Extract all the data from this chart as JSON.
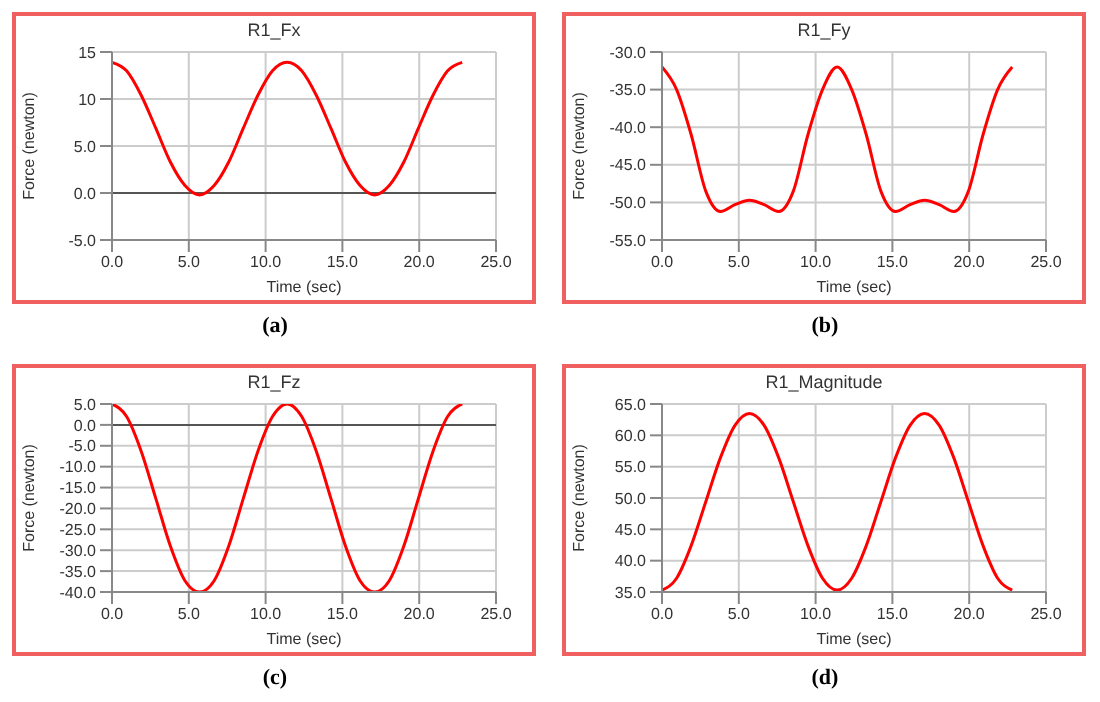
{
  "chart_data": [
    {
      "type": "line",
      "title": "R1_Fx",
      "xlabel": "Time (sec)",
      "ylabel": "Force (newton)",
      "color": "#ff0000",
      "grid": true,
      "annotations": [
        "(a)"
      ],
      "x": [
        0,
        0.95,
        1.9,
        2.85,
        3.8,
        4.75,
        5.7,
        6.65,
        7.6,
        8.55,
        9.5,
        10.45,
        11.4,
        12.35,
        13.3,
        14.25,
        15.2,
        16.15,
        17.1,
        18.05,
        19.0,
        19.95,
        20.9,
        21.85,
        22.8
      ],
      "values": [
        13.9,
        13.0,
        10.4,
        6.9,
        3.3,
        0.8,
        -0.2,
        0.8,
        3.3,
        6.9,
        10.4,
        13.0,
        13.9,
        13.0,
        10.4,
        6.9,
        3.3,
        0.8,
        -0.2,
        0.8,
        3.3,
        6.9,
        10.4,
        13.0,
        13.9
      ],
      "xlim": [
        0,
        25
      ],
      "xticks": [
        {
          "value": 0,
          "label": "0.0"
        },
        {
          "value": 5,
          "label": "5.0"
        },
        {
          "value": 10,
          "label": "10.0"
        },
        {
          "value": 15,
          "label": "15.0"
        },
        {
          "value": 20,
          "label": "20.0"
        },
        {
          "value": 25,
          "label": "25.0"
        }
      ],
      "ylim": [
        -5,
        15
      ],
      "yticks": [
        {
          "value": -5,
          "label": "-5.0"
        },
        {
          "value": 0,
          "label": "0.0"
        },
        {
          "value": 5,
          "label": "5.0"
        },
        10,
        15
      ],
      "ref_lines": [
        {
          "axis": "y",
          "value": 0,
          "color": "#555555"
        }
      ]
    },
    {
      "type": "line",
      "title": "R1_Fy",
      "xlabel": "Time (sec)",
      "ylabel": "Force (newton)",
      "color": "#ff0000",
      "grid": true,
      "annotations": [
        "(b)"
      ],
      "x": [
        0,
        0.95,
        1.9,
        2.85,
        3.8,
        4.75,
        5.7,
        6.65,
        7.6,
        8.55,
        9.5,
        10.45,
        11.4,
        12.35,
        13.3,
        14.25,
        15.2,
        16.15,
        17.1,
        18.05,
        19.0,
        19.95,
        20.9,
        21.85,
        22.8
      ],
      "values": [
        -32,
        -35,
        -41,
        -48.5,
        -51.2,
        -50.3,
        -49.7,
        -50.3,
        -51.2,
        -48.5,
        -41,
        -35,
        -32,
        -35,
        -41,
        -48.5,
        -51.2,
        -50.3,
        -49.7,
        -50.3,
        -51.2,
        -48.5,
        -41,
        -35,
        -32
      ],
      "xlim": [
        0,
        25
      ],
      "xticks": [
        {
          "value": 0,
          "label": "0.0"
        },
        {
          "value": 5,
          "label": "5.0"
        },
        {
          "value": 10,
          "label": "10.0"
        },
        {
          "value": 15,
          "label": "15.0"
        },
        {
          "value": 20,
          "label": "20.0"
        },
        {
          "value": 25,
          "label": "25.0"
        }
      ],
      "ylim": [
        -55,
        -30
      ],
      "yticks": [
        {
          "value": -55,
          "label": "-55.0"
        },
        {
          "value": -50,
          "label": "-50.0"
        },
        {
          "value": -45,
          "label": "-45.0"
        },
        {
          "value": -40,
          "label": "-40.0"
        },
        {
          "value": -35,
          "label": "-35.0"
        },
        {
          "value": -30,
          "label": "-30.0"
        }
      ]
    },
    {
      "type": "line",
      "title": "R1_Fz",
      "xlabel": "Time (sec)",
      "ylabel": "Force (newton)",
      "color": "#ff0000",
      "grid": true,
      "annotations": [
        "(c)"
      ],
      "x": [
        0,
        0.95,
        1.9,
        2.85,
        3.8,
        4.75,
        5.7,
        6.65,
        7.6,
        8.55,
        9.5,
        10.45,
        11.4,
        12.35,
        13.3,
        14.25,
        15.2,
        16.15,
        17.1,
        18.05,
        19.0,
        19.95,
        20.9,
        21.85,
        22.8
      ],
      "values": [
        5,
        2,
        -6.3,
        -17.6,
        -29,
        -37.3,
        -40,
        -37.3,
        -29,
        -17.6,
        -6.3,
        2,
        5,
        2,
        -6.3,
        -17.6,
        -29,
        -37.3,
        -40,
        -37.3,
        -29,
        -17.6,
        -6.3,
        2,
        5
      ],
      "xlim": [
        0,
        25
      ],
      "xticks": [
        {
          "value": 0,
          "label": "0.0"
        },
        {
          "value": 5,
          "label": "5.0"
        },
        {
          "value": 10,
          "label": "10.0"
        },
        {
          "value": 15,
          "label": "15.0"
        },
        {
          "value": 20,
          "label": "20.0"
        },
        {
          "value": 25,
          "label": "25.0"
        }
      ],
      "ylim": [
        -40,
        5
      ],
      "yticks": [
        {
          "value": -40,
          "label": "-40.0"
        },
        {
          "value": -35,
          "label": "-35.0"
        },
        {
          "value": -30,
          "label": "-30.0"
        },
        {
          "value": -25,
          "label": "-25.0"
        },
        {
          "value": -20,
          "label": "-20.0"
        },
        {
          "value": -15,
          "label": "-15.0"
        },
        {
          "value": -10,
          "label": "-10.0"
        },
        {
          "value": -5,
          "label": "-5.0"
        },
        {
          "value": 0,
          "label": "0.0"
        },
        {
          "value": 5,
          "label": "5.0"
        }
      ],
      "ref_lines": [
        {
          "axis": "y",
          "value": 0,
          "color": "#555555"
        }
      ]
    },
    {
      "type": "line",
      "title": "R1_Magnitude",
      "xlabel": "Time (sec)",
      "ylabel": "Force (newton)",
      "color": "#ff0000",
      "grid": true,
      "annotations": [
        "(d)"
      ],
      "x": [
        0,
        0.95,
        1.9,
        2.85,
        3.8,
        4.75,
        5.7,
        6.65,
        7.6,
        8.55,
        9.5,
        10.45,
        11.4,
        12.35,
        13.3,
        14.25,
        15.2,
        16.15,
        17.1,
        18.05,
        19.0,
        19.95,
        20.9,
        21.85,
        22.8
      ],
      "values": [
        35.3,
        37.2,
        42.4,
        49.4,
        56.4,
        61.6,
        63.5,
        61.6,
        56.4,
        49.4,
        42.4,
        37.2,
        35.3,
        37.2,
        42.4,
        49.4,
        56.4,
        61.6,
        63.5,
        61.6,
        56.4,
        49.4,
        42.4,
        37.2,
        35.3
      ],
      "xlim": [
        0,
        25
      ],
      "xticks": [
        {
          "value": 0,
          "label": "0.0"
        },
        {
          "value": 5,
          "label": "5.0"
        },
        {
          "value": 10,
          "label": "10.0"
        },
        {
          "value": 15,
          "label": "15.0"
        },
        {
          "value": 20,
          "label": "20.0"
        },
        {
          "value": 25,
          "label": "25.0"
        }
      ],
      "ylim": [
        35,
        65
      ],
      "yticks": [
        {
          "value": 35,
          "label": "35.0"
        },
        {
          "value": 40,
          "label": "40.0"
        },
        {
          "value": 45,
          "label": "45.0"
        },
        {
          "value": 50,
          "label": "50.0"
        },
        {
          "value": 55,
          "label": "55.0"
        },
        {
          "value": 60,
          "label": "60.0"
        },
        {
          "value": 65,
          "label": "65.0"
        }
      ]
    }
  ]
}
